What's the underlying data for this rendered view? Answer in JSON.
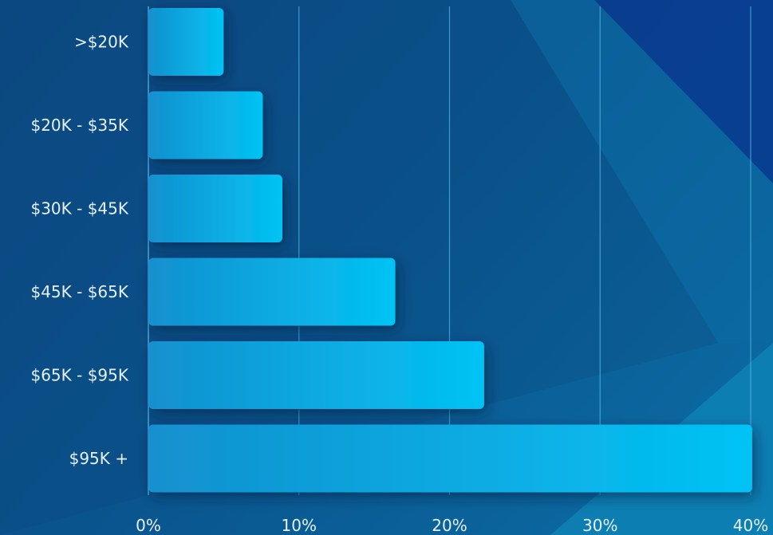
{
  "chart_data": {
    "type": "bar",
    "orientation": "horizontal",
    "categories": [
      ">$20K",
      "$20K - $35K",
      "$30K - $45K",
      "$45K - $65K",
      "$65K - $95K",
      "$95K +"
    ],
    "values": [
      5,
      7.6,
      8.9,
      16.4,
      22.3,
      40.1
    ],
    "xlim": [
      0,
      40
    ],
    "xticks": [
      0,
      10,
      20,
      30,
      40
    ],
    "xtick_labels": [
      "0%",
      "10%",
      "20%",
      "30%",
      "40%"
    ],
    "title": "",
    "xlabel": "",
    "ylabel": "",
    "grid": "vertical",
    "legend": "none",
    "colors": {
      "background_dark": "#0a3f72",
      "background_mid": "#0b5a92",
      "bar_left": "#1195d3",
      "bar_right": "#04c4f6",
      "grid": "#4fb6e6",
      "text": "#e6f1fb"
    }
  }
}
